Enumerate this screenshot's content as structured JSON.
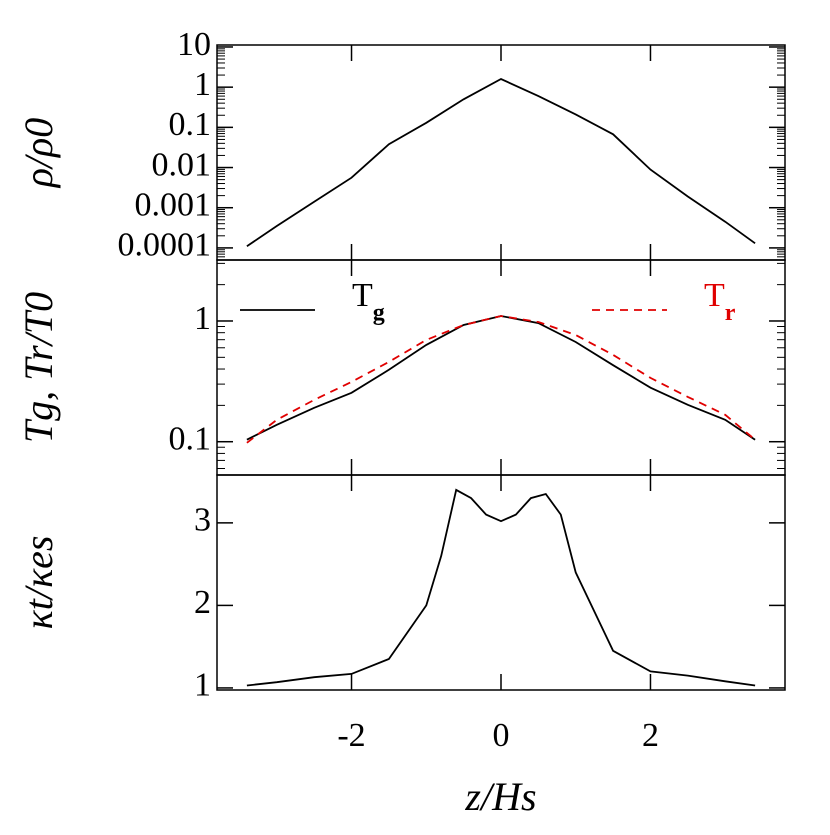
{
  "chart_data": [
    {
      "type": "line",
      "ylabel": "ρ/ρ0",
      "log": true,
      "xlim": [
        -3.8,
        3.8
      ],
      "ylim": [
        5e-05,
        11.2
      ],
      "yticks": [
        10,
        1,
        0.1,
        0.01,
        0.001,
        0.0001
      ],
      "x": [
        -3.4,
        -3,
        -2.5,
        -2,
        -1.5,
        -1,
        -0.5,
        0,
        0.5,
        1,
        1.5,
        2,
        2.5,
        3,
        3.4
      ],
      "series": [
        {
          "color": "#000000",
          "values": [
            0.00011,
            0.00035,
            0.0014,
            0.0056,
            0.038,
            0.13,
            0.5,
            1.6,
            0.6,
            0.21,
            0.067,
            0.0089,
            0.0019,
            0.00045,
            0.00013
          ]
        }
      ]
    },
    {
      "type": "line",
      "ylabel": "Tg, Tr/T0",
      "log": true,
      "xlim": [
        -3.8,
        3.8
      ],
      "ylim": [
        0.053,
        3.2
      ],
      "yticks": [
        0.1,
        1
      ],
      "x": [
        -3.4,
        -3,
        -2.5,
        -2,
        -1.5,
        -1,
        -0.5,
        0,
        0.5,
        1,
        1.5,
        2,
        2.5,
        3,
        3.4
      ],
      "series": [
        {
          "name": "Tg",
          "color": "#000000",
          "dash": false,
          "values": [
            0.104,
            0.138,
            0.191,
            0.254,
            0.394,
            0.634,
            0.927,
            1.1,
            0.96,
            0.67,
            0.43,
            0.28,
            0.202,
            0.152,
            0.104
          ]
        },
        {
          "name": "Tr",
          "color": "#e00000",
          "dash": true,
          "values": [
            0.098,
            0.152,
            0.222,
            0.313,
            0.458,
            0.697,
            0.927,
            1.1,
            0.98,
            0.766,
            0.524,
            0.338,
            0.235,
            0.167,
            0.104
          ]
        }
      ]
    },
    {
      "type": "line",
      "ylabel": "κt/κes",
      "xlabel": "z/Hs",
      "log": false,
      "xlim": [
        -3.8,
        3.8
      ],
      "ylim": [
        0.975,
        3.58
      ],
      "xticks": [
        -2,
        0,
        2
      ],
      "yticks": [
        1,
        2,
        3
      ],
      "x": [
        -3.4,
        -3,
        -2.5,
        -2,
        -1.5,
        -1,
        -0.8,
        -0.6,
        -0.4,
        -0.2,
        0,
        0.2,
        0.4,
        0.6,
        0.8,
        1,
        1.5,
        2,
        2.5,
        3,
        3.4
      ],
      "series": [
        {
          "color": "#000000",
          "values": [
            1.03,
            1.07,
            1.13,
            1.17,
            1.35,
            2.0,
            2.6,
            3.4,
            3.3,
            3.1,
            3.02,
            3.1,
            3.3,
            3.35,
            3.1,
            2.4,
            1.45,
            1.2,
            1.15,
            1.08,
            1.03
          ]
        }
      ]
    }
  ]
}
